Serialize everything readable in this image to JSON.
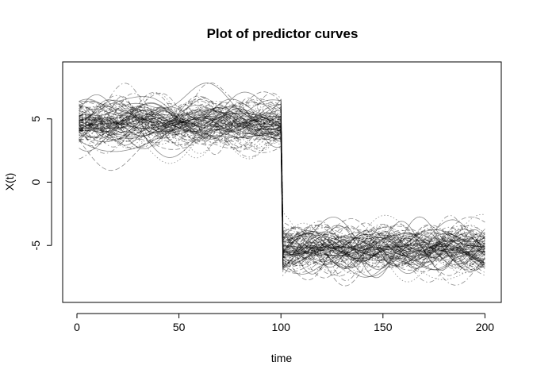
{
  "chart_data": {
    "type": "line",
    "title": "Plot of predictor curves",
    "xlabel": "time",
    "ylabel": "X(t)",
    "xlim": [
      1,
      200
    ],
    "ylim": [
      -9.5,
      9.5
    ],
    "xticks": [
      0,
      50,
      100,
      150,
      200
    ],
    "yticks": [
      -5,
      0,
      5
    ],
    "grid": false,
    "legend": "none",
    "curve_count": 100,
    "segments": [
      {
        "x_range": [
          1,
          100
        ],
        "mean_level": 4.6,
        "spread_range": [
          1.3,
          8.8
        ]
      },
      {
        "x_range": [
          101,
          200
        ],
        "mean_level": -5.3,
        "spread_range": [
          -9.0,
          -1.5
        ]
      }
    ],
    "line_styles": [
      "solid",
      "dashed",
      "dotted",
      "dashdot"
    ],
    "line_color": "#000000"
  }
}
